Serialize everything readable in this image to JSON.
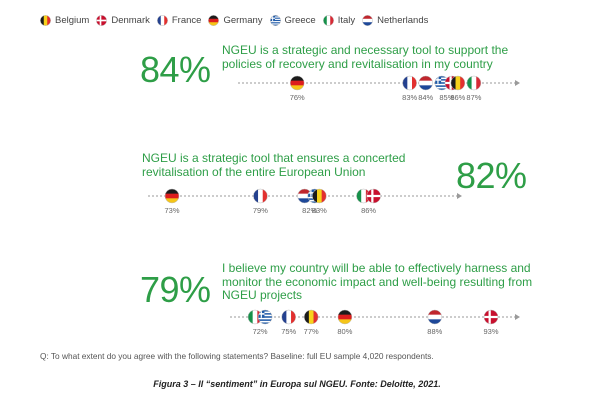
{
  "countries": [
    {
      "key": "belgium",
      "label": "Belgium"
    },
    {
      "key": "denmark",
      "label": "Denmark"
    },
    {
      "key": "france",
      "label": "France"
    },
    {
      "key": "germany",
      "label": "Germany"
    },
    {
      "key": "greece",
      "label": "Greece"
    },
    {
      "key": "italy",
      "label": "Italy"
    },
    {
      "key": "netherlands",
      "label": "Netherlands"
    }
  ],
  "colors": {
    "accent_green": "#2e9e47",
    "axis_grey": "#9a9a9a"
  },
  "chart_data": [
    {
      "type": "scatter",
      "overall": "84%",
      "statement": "NGEU is a strategic and necessary tool to support the policies of recovery and revitalisation in my country",
      "xlim": [
        73,
        88
      ],
      "points": [
        {
          "country": "germany",
          "value": 76
        },
        {
          "country": "france",
          "value": 83
        },
        {
          "country": "netherlands",
          "value": 84
        },
        {
          "country": "greece",
          "value": 85
        },
        {
          "country": "denmark",
          "value": 85
        },
        {
          "country": "belgium",
          "value": 86
        },
        {
          "country": "italy",
          "value": 87
        }
      ],
      "labels": [
        {
          "text": "76%",
          "value": 76
        },
        {
          "text": "83%",
          "value": 83
        },
        {
          "text": "84%",
          "value": 84
        },
        {
          "text": "85%",
          "value": 85
        },
        {
          "text": "86%",
          "value": 86
        },
        {
          "text": "87%",
          "value": 87
        }
      ]
    },
    {
      "type": "scatter",
      "overall": "82%",
      "statement": "NGEU is a strategic tool that ensures a concerted revitalisation of the entire European Union",
      "xlim": [
        73,
        88
      ],
      "points": [
        {
          "country": "germany",
          "value": 73
        },
        {
          "country": "france",
          "value": 79
        },
        {
          "country": "netherlands",
          "value": 82
        },
        {
          "country": "greece",
          "value": 82
        },
        {
          "country": "belgium",
          "value": 83
        },
        {
          "country": "italy",
          "value": 86
        },
        {
          "country": "denmark",
          "value": 86
        }
      ],
      "labels": [
        {
          "text": "73%",
          "value": 73
        },
        {
          "text": "79%",
          "value": 79
        },
        {
          "text": "82%",
          "value": 82
        },
        {
          "text": "83%",
          "value": 83
        },
        {
          "text": "86%",
          "value": 86
        }
      ]
    },
    {
      "type": "scatter",
      "overall": "79%",
      "statement": "I believe my country will be able to effectively harness and monitor the economic impact and well-being resulting from NGEU projects",
      "xlim": [
        72,
        93
      ],
      "points": [
        {
          "country": "italy",
          "value": 72
        },
        {
          "country": "greece",
          "value": 72
        },
        {
          "country": "france",
          "value": 75
        },
        {
          "country": "belgium",
          "value": 77
        },
        {
          "country": "germany",
          "value": 80
        },
        {
          "country": "netherlands",
          "value": 88
        },
        {
          "country": "denmark",
          "value": 93
        }
      ],
      "labels": [
        {
          "text": "72%",
          "value": 72
        },
        {
          "text": "75%",
          "value": 75
        },
        {
          "text": "77%",
          "value": 77
        },
        {
          "text": "80%",
          "value": 80
        },
        {
          "text": "88%",
          "value": 88
        },
        {
          "text": "93%",
          "value": 93
        }
      ]
    }
  ],
  "footnote": "Q: To what extent do you agree with the following statements? Baseline: full EU sample 4,020 respondents.",
  "caption": "Figura 3 – Il “sentiment” in Europa sul NGEU. Fonte: Deloitte, 2021."
}
